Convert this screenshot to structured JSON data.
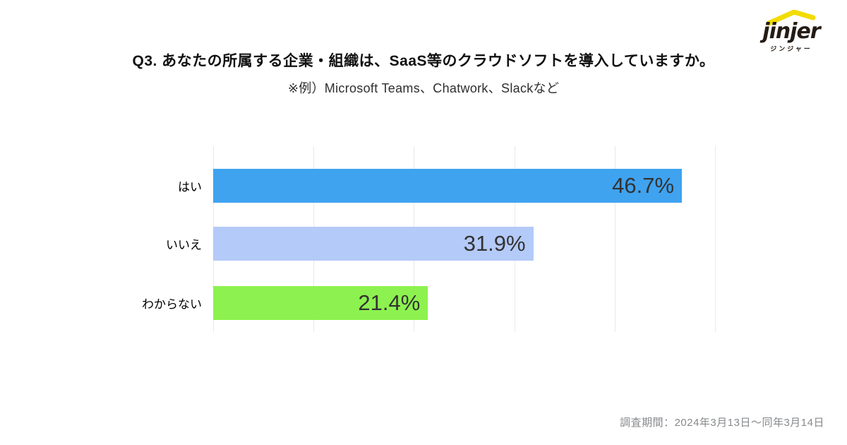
{
  "logo": {
    "brand": "jinjer",
    "subtext": "ジンジャー",
    "swoosh_color": "#f2dc00",
    "text_color": "#241b15"
  },
  "header": {
    "title": "Q3. あなたの所属する企業・組織は、SaaS等のクラウドソフトを導入していますか。",
    "subtitle": "※例）Microsoft Teams、Chatwork、Slackなど"
  },
  "chart_data": {
    "type": "bar",
    "orientation": "horizontal",
    "title": "Q3. あなたの所属する企業・組織は、SaaS等のクラウドソフトを導入していますか。",
    "categories": [
      "はい",
      "いいえ",
      "わからない"
    ],
    "values": [
      46.7,
      31.9,
      21.4
    ],
    "value_labels": [
      "46.7%",
      "31.9%",
      "21.4%"
    ],
    "bar_colors": [
      "#3fa3f0",
      "#b4caf8",
      "#8df24f"
    ],
    "xlim": [
      0,
      50
    ],
    "gridline_interval": 10,
    "grid": true,
    "gridline_color": "#e9e9e9",
    "legend": "none",
    "value_label_position": "inside-end"
  },
  "footer": {
    "survey_period": "調査期間：2024年3月13日～同年3月14日"
  }
}
